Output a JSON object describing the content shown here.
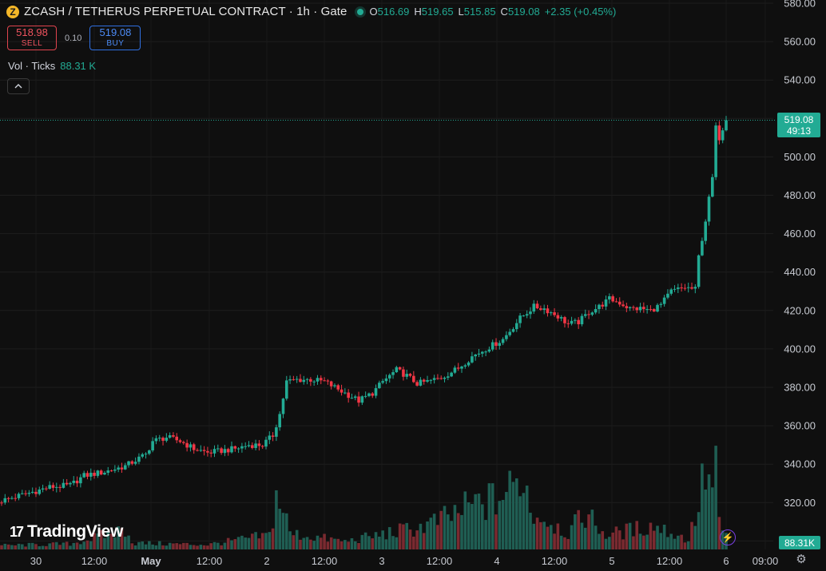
{
  "header": {
    "coin_icon_letter": "Z",
    "title": "ZCASH / TETHERUS PERPETUAL CONTRACT · 1h · Gate",
    "ohlc": [
      {
        "key": "O",
        "value": "516.69"
      },
      {
        "key": "H",
        "value": "519.65"
      },
      {
        "key": "L",
        "value": "515.85"
      },
      {
        "key": "C",
        "value": "519.08"
      }
    ],
    "change": "+2.35 (+0.45%)",
    "status_color": "#22ab94"
  },
  "trade": {
    "sell_price": "518.98",
    "sell_label": "SELL",
    "spread": "0.10",
    "buy_price": "519.08",
    "buy_label": "BUY"
  },
  "volume_legend": {
    "label": "Vol · Ticks",
    "value": "88.31 K"
  },
  "collapse_icon": "chevron-up-icon",
  "price_tag": {
    "price": "519.08",
    "countdown": "49:13"
  },
  "volume_tag": "88.31K",
  "branding": {
    "logo_text": "TradingView",
    "logo_mark": "17"
  },
  "colors": {
    "up": "#22ab94",
    "down": "#f23645",
    "background": "#0f0f0f"
  },
  "chart_data": {
    "type": "candlestick",
    "interval": "1h",
    "y_ticks": [
      580,
      560,
      540,
      520,
      500,
      480,
      460,
      440,
      420,
      400,
      380,
      360,
      340,
      320,
      300
    ],
    "y_tick_labels": [
      "580.00",
      "560.00",
      "540.00",
      "520.00",
      "500.00",
      "480.00",
      "460.00",
      "440.00",
      "420.00",
      "400.00",
      "380.00",
      "360.00",
      "340.00",
      "320.00",
      "300.00"
    ],
    "ylim": [
      295,
      581
    ],
    "last_price": 519.08,
    "x_ticks": [
      {
        "label": "30",
        "bold": false
      },
      {
        "label": "12:00",
        "bold": false
      },
      {
        "label": "May",
        "bold": true
      },
      {
        "label": "12:00",
        "bold": false
      },
      {
        "label": "2",
        "bold": false
      },
      {
        "label": "12:00",
        "bold": false
      },
      {
        "label": "3",
        "bold": false
      },
      {
        "label": "12:00",
        "bold": false
      },
      {
        "label": "4",
        "bold": false
      },
      {
        "label": "12:00",
        "bold": false
      },
      {
        "label": "5",
        "bold": false
      },
      {
        "label": "12:00",
        "bold": false
      },
      {
        "label": "6",
        "bold": false
      },
      {
        "label": "09:00",
        "bold": false
      }
    ],
    "price_path": [
      [
        0,
        321
      ],
      [
        8,
        325
      ],
      [
        14,
        328
      ],
      [
        20,
        329
      ],
      [
        24,
        334
      ],
      [
        30,
        336
      ],
      [
        36,
        339
      ],
      [
        42,
        345
      ],
      [
        44,
        352
      ],
      [
        48,
        354
      ],
      [
        52,
        352
      ],
      [
        56,
        348
      ],
      [
        60,
        346
      ],
      [
        64,
        347
      ],
      [
        68,
        348
      ],
      [
        72,
        350
      ],
      [
        76,
        350
      ],
      [
        79,
        355
      ],
      [
        81,
        366
      ],
      [
        83,
        383
      ],
      [
        86,
        384
      ],
      [
        90,
        384
      ],
      [
        94,
        383
      ],
      [
        97,
        380
      ],
      [
        101,
        376
      ],
      [
        104,
        373
      ],
      [
        108,
        377
      ],
      [
        111,
        383
      ],
      [
        115,
        389
      ],
      [
        118,
        386
      ],
      [
        121,
        382
      ],
      [
        124,
        383
      ],
      [
        128,
        385
      ],
      [
        133,
        390
      ],
      [
        137,
        396
      ],
      [
        140,
        399
      ],
      [
        143,
        402
      ],
      [
        146,
        405
      ],
      [
        151,
        416
      ],
      [
        155,
        422
      ],
      [
        158,
        421
      ],
      [
        162,
        417
      ],
      [
        165,
        413
      ],
      [
        168,
        414
      ],
      [
        171,
        419
      ],
      [
        174,
        422
      ],
      [
        177,
        426
      ],
      [
        180,
        424
      ],
      [
        183,
        421
      ],
      [
        186,
        421
      ],
      [
        189,
        420
      ],
      [
        192,
        423
      ],
      [
        195,
        430
      ],
      [
        199,
        432
      ],
      [
        202,
        431
      ],
      [
        203,
        448
      ],
      [
        205,
        467
      ],
      [
        207,
        489
      ],
      [
        208,
        515
      ],
      [
        209,
        510
      ],
      [
        210,
        515
      ],
      [
        211,
        519.08
      ]
    ],
    "volume_profile": [
      [
        0,
        0.05
      ],
      [
        20,
        0.07
      ],
      [
        37,
        0.26
      ],
      [
        38,
        0.08
      ],
      [
        60,
        0.06
      ],
      [
        78,
        0.18
      ],
      [
        80,
        0.66
      ],
      [
        82,
        0.52
      ],
      [
        84,
        0.2
      ],
      [
        100,
        0.1
      ],
      [
        122,
        0.28
      ],
      [
        130,
        0.4
      ],
      [
        137,
        0.55
      ],
      [
        144,
        0.62
      ],
      [
        150,
        0.8
      ],
      [
        152,
        1.0
      ],
      [
        154,
        0.48
      ],
      [
        160,
        0.35
      ],
      [
        165,
        0.2
      ],
      [
        170,
        0.46
      ],
      [
        176,
        0.18
      ],
      [
        190,
        0.3
      ],
      [
        200,
        0.12
      ],
      [
        203,
        0.55
      ],
      [
        205,
        1.0
      ],
      [
        206,
        0.8
      ],
      [
        207,
        0.72
      ],
      [
        208,
        1.3
      ],
      [
        209,
        0.3
      ],
      [
        210,
        0.18
      ],
      [
        211,
        0.2
      ]
    ]
  }
}
